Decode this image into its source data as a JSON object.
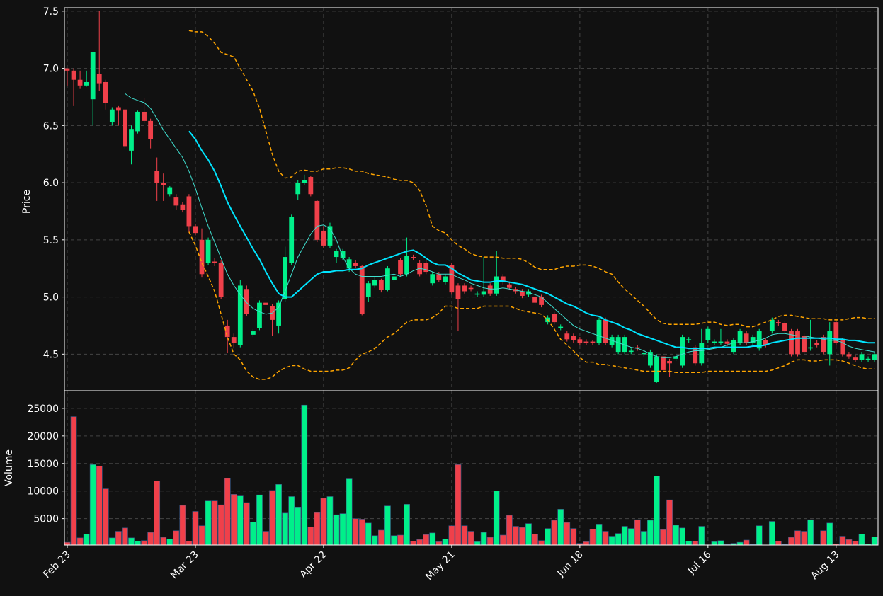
{
  "chart_data": {
    "type": "candlestick",
    "ylabel": "Price",
    "volume_ylabel": "Volume",
    "up_color": "#00f08a",
    "down_color": "#f0404a",
    "grid": true,
    "ylim": [
      4.18,
      7.53
    ],
    "yticks": [
      4.5,
      {
        "value": 5,
        "label": "5.0"
      },
      5.5,
      {
        "value": 6,
        "label": "6.0"
      },
      6.5,
      {
        "value": 7,
        "label": "7.0"
      },
      7.5
    ],
    "volume_ylim": [
      200,
      28200
    ],
    "volume_yticks": [
      5000,
      10000,
      15000,
      20000,
      25000
    ],
    "categories": [
      "Feb 23",
      null,
      null,
      null,
      null,
      null,
      null,
      null,
      null,
      null,
      null,
      null,
      null,
      null,
      null,
      null,
      null,
      null,
      null,
      null,
      "Mar 23",
      null,
      null,
      null,
      null,
      null,
      null,
      null,
      null,
      null,
      null,
      null,
      null,
      null,
      null,
      null,
      null,
      null,
      null,
      null,
      "Apr 22",
      null,
      null,
      null,
      null,
      null,
      null,
      null,
      null,
      null,
      null,
      null,
      null,
      null,
      null,
      null,
      null,
      null,
      null,
      null,
      "May 21",
      null,
      null,
      null,
      null,
      null,
      null,
      null,
      null,
      null,
      null,
      null,
      null,
      null,
      null,
      null,
      null,
      null,
      null,
      null,
      "Jun 18",
      null,
      null,
      null,
      null,
      null,
      null,
      null,
      null,
      null,
      null,
      null,
      null,
      null,
      null,
      null,
      null,
      null,
      null,
      null,
      "Jul 16",
      null,
      null,
      null,
      null,
      null,
      null,
      null,
      null,
      null,
      null,
      null,
      null,
      null,
      null,
      null,
      null,
      null,
      null,
      null,
      "Aug 13",
      null,
      null,
      null,
      null,
      null,
      null
    ],
    "open": [
      7.0,
      6.98,
      6.9,
      6.85,
      6.73,
      6.95,
      6.88,
      6.53,
      6.66,
      6.64,
      6.28,
      6.45,
      6.62,
      6.54,
      6.1,
      6.0,
      5.9,
      5.87,
      5.81,
      5.88,
      5.62,
      5.5,
      5.3,
      5.31,
      5.3,
      4.75,
      4.65,
      4.58,
      5.07,
      4.67,
      4.73,
      4.95,
      4.92,
      4.75,
      4.98,
      5.3,
      5.9,
      6.0,
      6.05,
      5.84,
      5.58,
      5.45,
      5.35,
      5.34,
      5.25,
      5.3,
      5.27,
      5.0,
      5.1,
      5.15,
      5.06,
      5.15,
      5.32,
      5.2,
      5.35,
      5.3,
      5.3,
      5.12,
      5.2,
      5.13,
      5.28,
      5.1,
      5.1,
      5.08,
      5.02,
      5.02,
      5.1,
      5.03,
      5.18,
      5.11,
      5.07,
      5.05,
      5.02,
      5.0,
      5.0,
      4.78,
      4.85,
      4.73,
      4.68,
      4.66,
      4.63,
      4.61,
      4.61,
      4.6,
      4.8,
      4.58,
      4.52,
      4.52,
      4.52,
      4.56,
      4.5,
      4.4,
      4.26,
      4.48,
      4.44,
      4.46,
      4.4,
      4.62,
      4.56,
      4.42,
      4.62,
      4.6,
      4.6,
      4.61,
      4.52,
      4.6,
      4.68,
      4.6,
      4.55,
      4.62,
      4.7,
      4.78,
      4.77,
      4.7,
      4.7,
      4.66,
      4.55,
      4.6,
      4.65,
      4.5,
      4.78,
      4.62,
      4.5,
      4.47,
      4.45,
      4.45,
      4.45
    ],
    "close": [
      6.98,
      6.9,
      6.85,
      6.88,
      7.14,
      6.87,
      6.7,
      6.64,
      6.63,
      6.32,
      6.47,
      6.62,
      6.54,
      6.38,
      6.0,
      5.98,
      5.96,
      5.8,
      5.76,
      5.62,
      5.56,
      5.2,
      5.5,
      5.3,
      5.0,
      4.65,
      4.6,
      5.1,
      4.85,
      4.7,
      4.95,
      4.93,
      4.8,
      4.95,
      5.35,
      5.7,
      6.0,
      6.02,
      5.9,
      5.5,
      5.45,
      5.62,
      5.4,
      5.4,
      5.33,
      5.27,
      4.85,
      5.12,
      5.15,
      5.06,
      5.25,
      5.18,
      5.2,
      5.36,
      5.34,
      5.2,
      5.22,
      5.2,
      5.15,
      5.18,
      5.04,
      4.98,
      5.05,
      5.07,
      5.03,
      5.05,
      5.03,
      5.18,
      5.13,
      5.08,
      5.05,
      5.01,
      5.05,
      4.95,
      4.93,
      4.82,
      4.78,
      4.74,
      4.63,
      4.62,
      4.6,
      4.6,
      4.6,
      4.8,
      4.6,
      4.65,
      4.65,
      4.65,
      4.53,
      4.55,
      4.51,
      4.52,
      4.48,
      4.36,
      4.42,
      4.48,
      4.65,
      4.63,
      4.42,
      4.6,
      4.72,
      4.61,
      4.61,
      4.59,
      4.62,
      4.7,
      4.6,
      4.65,
      4.7,
      4.58,
      4.8,
      4.77,
      4.7,
      4.5,
      4.5,
      4.52,
      4.56,
      4.58,
      4.52,
      4.7,
      4.6,
      4.5,
      4.48,
      4.45,
      4.5,
      4.46,
      4.5
    ],
    "high": [
      7.0,
      7.0,
      6.98,
      6.98,
      7.14,
      7.5,
      6.9,
      6.66,
      6.67,
      6.64,
      6.5,
      6.63,
      6.74,
      6.56,
      6.22,
      6.08,
      5.97,
      5.9,
      5.83,
      5.9,
      5.64,
      5.6,
      5.52,
      5.34,
      5.32,
      4.8,
      4.68,
      5.15,
      5.1,
      4.72,
      4.97,
      4.97,
      4.94,
      4.97,
      5.44,
      5.72,
      6.02,
      6.07,
      6.06,
      5.85,
      5.62,
      5.65,
      5.42,
      5.42,
      5.35,
      5.32,
      5.28,
      5.14,
      5.17,
      5.16,
      5.27,
      5.2,
      5.34,
      5.52,
      5.37,
      5.32,
      5.32,
      5.22,
      5.22,
      5.2,
      5.3,
      5.12,
      5.12,
      5.1,
      5.05,
      5.35,
      5.12,
      5.4,
      5.2,
      5.13,
      5.09,
      5.07,
      5.07,
      5.02,
      5.02,
      4.84,
      4.87,
      4.76,
      4.7,
      4.68,
      4.65,
      4.63,
      4.62,
      4.82,
      4.82,
      4.67,
      4.67,
      4.67,
      4.55,
      4.58,
      4.53,
      4.54,
      4.5,
      4.5,
      4.46,
      4.5,
      4.67,
      4.65,
      4.58,
      4.72,
      4.74,
      4.63,
      4.72,
      4.63,
      4.64,
      4.72,
      4.7,
      4.67,
      4.72,
      4.64,
      4.82,
      4.8,
      4.79,
      4.72,
      4.72,
      4.68,
      4.8,
      4.62,
      4.67,
      4.78,
      4.8,
      4.64,
      4.52,
      4.49,
      4.52,
      4.48,
      4.52
    ],
    "low": [
      6.85,
      6.67,
      6.82,
      6.84,
      6.5,
      6.8,
      6.64,
      6.5,
      6.5,
      6.3,
      6.16,
      6.43,
      6.52,
      6.3,
      5.84,
      5.84,
      5.88,
      5.76,
      5.74,
      5.56,
      5.54,
      5.17,
      5.28,
      5.27,
      4.98,
      4.51,
      4.55,
      4.56,
      4.83,
      4.65,
      4.71,
      4.9,
      4.66,
      4.68,
      4.96,
      5.28,
      5.85,
      5.98,
      5.88,
      5.48,
      5.43,
      5.43,
      5.3,
      5.32,
      5.22,
      5.25,
      4.84,
      4.96,
      5.08,
      5.04,
      5.05,
      5.13,
      5.18,
      5.18,
      5.32,
      5.18,
      5.2,
      5.1,
      5.13,
      5.11,
      5.02,
      4.7,
      5.03,
      5.05,
      5.0,
      5.0,
      5.01,
      5.01,
      5.11,
      5.06,
      5.03,
      4.99,
      5.0,
      4.93,
      4.91,
      4.76,
      4.76,
      4.71,
      4.61,
      4.6,
      4.58,
      4.58,
      4.58,
      4.58,
      4.58,
      4.56,
      4.5,
      4.5,
      4.5,
      4.53,
      4.48,
      4.38,
      4.25,
      4.2,
      4.3,
      4.44,
      4.38,
      4.6,
      4.4,
      4.4,
      4.6,
      4.58,
      4.58,
      4.57,
      4.5,
      4.58,
      4.58,
      4.58,
      4.53,
      4.56,
      4.68,
      4.75,
      4.68,
      4.48,
      4.48,
      4.5,
      4.53,
      4.56,
      4.5,
      4.4,
      4.58,
      4.48,
      4.46,
      4.43,
      4.43,
      4.43,
      4.43
    ],
    "volume": [
      700,
      23500,
      1500,
      2200,
      14800,
      14500,
      10400,
      1500,
      2700,
      3300,
      1500,
      900,
      1000,
      2500,
      11800,
      1600,
      1300,
      2800,
      7400,
      900,
      6300,
      3700,
      8200,
      8200,
      7500,
      12300,
      9400,
      9100,
      7900,
      4400,
      9300,
      2700,
      10100,
      11200,
      6000,
      9000,
      7100,
      25600,
      3500,
      6100,
      8700,
      9000,
      5700,
      5900,
      12200,
      5000,
      4900,
      4200,
      1900,
      2900,
      7300,
      1900,
      2000,
      7600,
      900,
      1200,
      2100,
      2400,
      800,
      1300,
      3700,
      14800,
      3700,
      2700,
      800,
      2500,
      1600,
      10000,
      2000,
      5600,
      3600,
      3400,
      4100,
      2200,
      1000,
      3200,
      4700,
      6700,
      4300,
      3200,
      500,
      800,
      3100,
      4000,
      2700,
      1800,
      2300,
      3600,
      3200,
      4800,
      2700,
      4700,
      12700,
      3000,
      8400,
      3800,
      3300,
      900,
      900,
      3600,
      200,
      800,
      1000,
      300,
      500,
      700,
      1100,
      300,
      3700,
      200,
      4500,
      900,
      300,
      1600,
      2800,
      2700,
      4800,
      300,
      2800,
      4200,
      400,
      1800,
      1200,
      900,
      2200,
      400,
      1700
    ],
    "lines": [
      {
        "color": "#40e0d0",
        "width": 1,
        "dashed": false,
        "values": [
          null,
          null,
          null,
          null,
          null,
          null,
          null,
          null,
          null,
          6.78,
          6.74,
          6.72,
          6.7,
          6.65,
          6.56,
          6.46,
          6.38,
          6.3,
          6.22,
          6.1,
          5.95,
          5.78,
          5.62,
          5.48,
          5.34,
          5.2,
          5.1,
          5.02,
          4.95,
          4.9,
          4.87,
          4.85,
          4.86,
          4.91,
          5.05,
          5.2,
          5.35,
          5.45,
          5.55,
          5.62,
          5.63,
          5.6,
          5.5,
          5.35,
          5.25,
          5.2,
          5.18,
          5.18,
          5.18,
          5.18,
          5.19,
          5.2,
          5.18,
          5.2,
          5.23,
          5.25,
          5.24,
          5.22,
          5.2,
          5.2,
          5.2,
          5.17,
          5.15,
          5.12,
          5.1,
          5.08,
          5.07,
          5.07,
          5.08,
          5.07,
          5.06,
          5.05,
          5.04,
          5.02,
          5.0,
          4.95,
          4.9,
          4.85,
          4.8,
          4.75,
          4.72,
          4.7,
          4.68,
          4.66,
          4.64,
          4.62,
          4.6,
          4.58,
          4.56,
          4.55,
          4.53,
          4.5,
          4.48,
          4.47,
          4.47,
          4.48,
          4.5,
          4.52,
          4.53,
          4.53,
          4.54,
          4.55,
          4.56,
          4.58,
          4.6,
          4.6,
          4.6,
          4.61,
          4.62,
          4.64,
          4.67,
          4.68,
          4.68,
          4.67,
          4.66,
          4.66,
          4.65,
          4.64,
          4.63,
          4.62,
          4.62,
          4.6,
          4.57,
          4.55,
          4.54,
          4.53,
          4.52
        ]
      },
      {
        "color": "#00e5ff",
        "width": 2,
        "dashed": false,
        "values": [
          null,
          null,
          null,
          null,
          null,
          null,
          null,
          null,
          null,
          null,
          null,
          null,
          null,
          null,
          null,
          null,
          null,
          null,
          null,
          6.45,
          6.38,
          6.28,
          6.2,
          6.1,
          5.97,
          5.83,
          5.72,
          5.62,
          5.52,
          5.42,
          5.33,
          5.22,
          5.12,
          5.03,
          5.0,
          5.0,
          5.05,
          5.1,
          5.15,
          5.2,
          5.22,
          5.22,
          5.23,
          5.23,
          5.24,
          5.24,
          5.25,
          5.28,
          5.3,
          5.32,
          5.34,
          5.36,
          5.38,
          5.4,
          5.41,
          5.38,
          5.34,
          5.3,
          5.28,
          5.28,
          5.25,
          5.21,
          5.18,
          5.15,
          5.14,
          5.13,
          5.13,
          5.14,
          5.14,
          5.13,
          5.12,
          5.11,
          5.09,
          5.07,
          5.05,
          5.03,
          5.0,
          4.97,
          4.94,
          4.92,
          4.89,
          4.86,
          4.84,
          4.83,
          4.8,
          4.78,
          4.76,
          4.73,
          4.71,
          4.68,
          4.66,
          4.64,
          4.62,
          4.6,
          4.58,
          4.56,
          4.56,
          4.55,
          4.55,
          4.55,
          4.55,
          4.56,
          4.56,
          4.56,
          4.56,
          4.56,
          4.56,
          4.57,
          4.57,
          4.58,
          4.6,
          4.61,
          4.62,
          4.63,
          4.64,
          4.64,
          4.64,
          4.64,
          4.64,
          4.64,
          4.63,
          4.63,
          4.62,
          4.62,
          4.61,
          4.6,
          4.6
        ]
      },
      {
        "color": "#ffa500",
        "width": 1.5,
        "dashed": true,
        "values": [
          null,
          null,
          null,
          null,
          null,
          null,
          null,
          null,
          null,
          null,
          null,
          null,
          null,
          null,
          null,
          null,
          null,
          null,
          null,
          7.33,
          7.32,
          7.32,
          7.28,
          7.22,
          7.14,
          7.12,
          7.1,
          7.0,
          6.9,
          6.8,
          6.65,
          6.45,
          6.25,
          6.1,
          6.04,
          6.05,
          6.1,
          6.11,
          6.1,
          6.1,
          6.12,
          6.12,
          6.13,
          6.13,
          6.12,
          6.1,
          6.1,
          6.08,
          6.07,
          6.06,
          6.05,
          6.03,
          6.02,
          6.02,
          6.0,
          5.93,
          5.8,
          5.62,
          5.58,
          5.56,
          5.5,
          5.45,
          5.42,
          5.38,
          5.36,
          5.35,
          5.35,
          5.35,
          5.34,
          5.34,
          5.34,
          5.33,
          5.3,
          5.26,
          5.24,
          5.24,
          5.24,
          5.26,
          5.27,
          5.27,
          5.28,
          5.28,
          5.27,
          5.25,
          5.22,
          5.2,
          5.13,
          5.07,
          5.02,
          4.97,
          4.92,
          4.86,
          4.8,
          4.77,
          4.76,
          4.76,
          4.76,
          4.76,
          4.76,
          4.77,
          4.78,
          4.78,
          4.76,
          4.75,
          4.76,
          4.76,
          4.74,
          4.74,
          4.76,
          4.78,
          4.8,
          4.83,
          4.84,
          4.84,
          4.83,
          4.82,
          4.81,
          4.81,
          4.81,
          4.8,
          4.8,
          4.8,
          4.81,
          4.82,
          4.82,
          4.81,
          4.81
        ]
      },
      {
        "color": "#ffa500",
        "width": 1.5,
        "dashed": true,
        "values": [
          null,
          null,
          null,
          null,
          null,
          null,
          null,
          null,
          null,
          null,
          null,
          null,
          null,
          null,
          null,
          null,
          null,
          null,
          null,
          5.57,
          5.45,
          5.3,
          5.18,
          5.05,
          4.85,
          4.65,
          4.5,
          4.45,
          4.35,
          4.3,
          4.28,
          4.28,
          4.3,
          4.35,
          4.38,
          4.4,
          4.4,
          4.37,
          4.35,
          4.35,
          4.35,
          4.35,
          4.36,
          4.36,
          4.38,
          4.45,
          4.5,
          4.52,
          4.55,
          4.6,
          4.65,
          4.68,
          4.73,
          4.78,
          4.8,
          4.8,
          4.8,
          4.82,
          4.86,
          4.92,
          4.92,
          4.9,
          4.9,
          4.9,
          4.9,
          4.92,
          4.92,
          4.92,
          4.92,
          4.92,
          4.9,
          4.88,
          4.87,
          4.86,
          4.85,
          4.8,
          4.72,
          4.63,
          4.58,
          4.53,
          4.47,
          4.43,
          4.43,
          4.41,
          4.41,
          4.4,
          4.39,
          4.38,
          4.37,
          4.36,
          4.35,
          4.35,
          4.35,
          4.35,
          4.35,
          4.34,
          4.34,
          4.34,
          4.34,
          4.34,
          4.35,
          4.35,
          4.35,
          4.35,
          4.35,
          4.35,
          4.35,
          4.35,
          4.35,
          4.35,
          4.36,
          4.38,
          4.4,
          4.43,
          4.45,
          4.45,
          4.44,
          4.44,
          4.45,
          4.45,
          4.45,
          4.44,
          4.42,
          4.4,
          4.38,
          4.37,
          4.37
        ]
      }
    ]
  }
}
